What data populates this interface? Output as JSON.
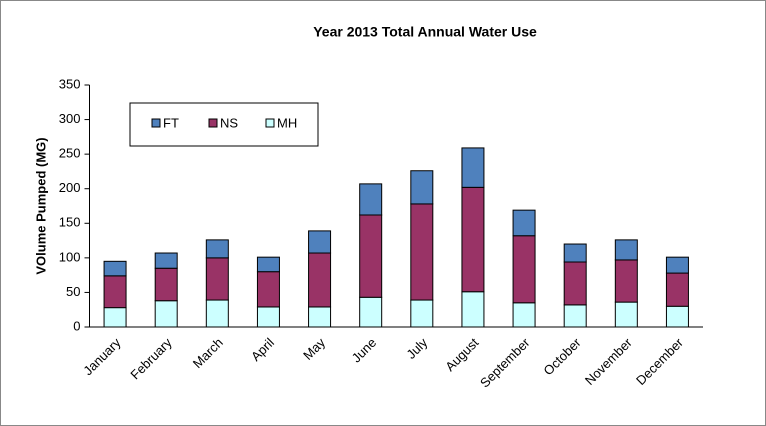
{
  "chart_data": {
    "type": "stacked-bar",
    "title": "Year 2013 Total Annual Water Use",
    "y_label": "VOlume Pumped (MG)",
    "categories": [
      "January",
      "February",
      "March",
      "April",
      "May",
      "June",
      "July",
      "August",
      "September",
      "October",
      "November",
      "December"
    ],
    "series": [
      {
        "name": "MH",
        "color": "#ccffff",
        "values": [
          28,
          38,
          39,
          29,
          29,
          43,
          39,
          51,
          35,
          32,
          36,
          30
        ]
      },
      {
        "name": "NS",
        "color": "#993366",
        "values": [
          46,
          47,
          61,
          51,
          78,
          119,
          139,
          151,
          97,
          62,
          61,
          48
        ]
      },
      {
        "name": "FT",
        "color": "#4f81bd",
        "values": [
          21,
          22,
          26,
          21,
          32,
          45,
          48,
          57,
          37,
          26,
          29,
          23
        ]
      }
    ],
    "legend_order": [
      "FT",
      "NS",
      "MH"
    ],
    "ylim": [
      0,
      350
    ],
    "yticks": [
      0,
      50,
      100,
      150,
      200,
      250,
      300,
      350
    ],
    "grid": false
  }
}
